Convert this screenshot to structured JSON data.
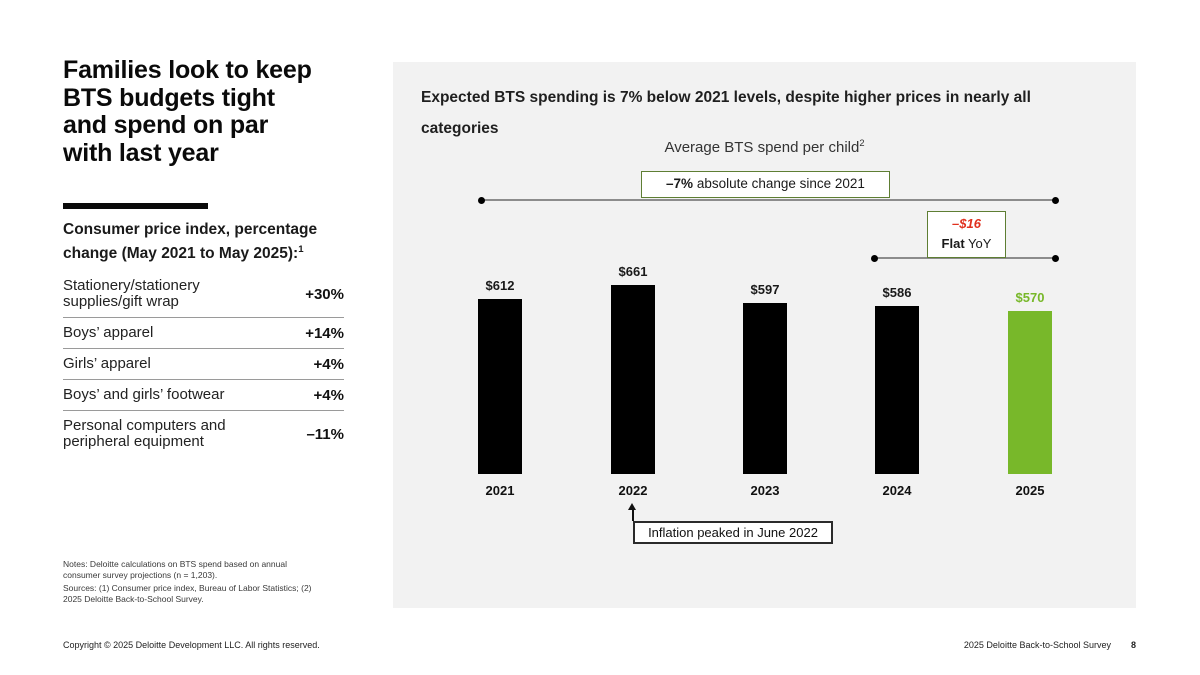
{
  "left": {
    "title_lines": [
      "Families look to keep",
      "BTS budgets tight",
      "and spend on par",
      "with last year"
    ],
    "cpi_heading_line1": "Consumer price index, percentage",
    "cpi_heading_line2": "change (May 2021 to May 2025):",
    "cpi_heading_sup": "1",
    "cpi_rows": [
      {
        "label": "Stationery/stationery supplies/gift wrap",
        "value": "+30%"
      },
      {
        "label": "Boys’ apparel",
        "value": "+14%"
      },
      {
        "label": "Girls’ apparel",
        "value": "+4%"
      },
      {
        "label": "Boys’ and girls’ footwear",
        "value": "+4%"
      },
      {
        "label": "Personal computers and peripheral equipment",
        "value": "–11%"
      }
    ],
    "notes_lines": [
      "Notes: Deloitte calculations on BTS spend based on annual",
      "consumer survey projections (n = 1,203)."
    ],
    "sources_lines": [
      "Sources: (1) Consumer price index, Bureau of Labor Statistics; (2)",
      "2025 Deloitte Back-to-School Survey."
    ]
  },
  "panel": {
    "heading_line1": "Expected BTS spending is 7% below 2021 levels, despite higher prices in nearly all",
    "heading_line2": "categories",
    "subtitle": "Average BTS spend per child",
    "subtitle_sup": "2"
  },
  "chart_data": {
    "type": "bar",
    "title": "Average BTS spend per child",
    "categories": [
      "2021",
      "2022",
      "2023",
      "2024",
      "2025"
    ],
    "values": [
      612,
      661,
      597,
      586,
      570
    ],
    "value_labels": [
      "$612",
      "$661",
      "$597",
      "$586",
      "$570"
    ],
    "bar_colors": [
      "#000000",
      "#000000",
      "#000000",
      "#000000",
      "#78B82A"
    ],
    "value_label_colors": [
      "#1a1a1a",
      "#1a1a1a",
      "#1a1a1a",
      "#1a1a1a",
      "#78B82A"
    ],
    "ylim": [
      0,
      700
    ],
    "grid": false,
    "annotations": {
      "overall_change": {
        "bold": "–7%",
        "rest": " absolute change since 2021",
        "span": [
          "2021",
          "2025"
        ]
      },
      "yoy": {
        "delta": "–$16",
        "flat_bold": "Flat",
        "flat_rest": " YoY",
        "span": [
          "2024",
          "2025"
        ]
      },
      "inflation": {
        "text": "Inflation peaked in June 2022",
        "target": "2022"
      }
    }
  },
  "footer": {
    "copyright": "Copyright © 2025 Deloitte Development LLC. All rights reserved.",
    "right_text": "2025 Deloitte Back-to-School Survey",
    "page_number": "8"
  },
  "colors": {
    "accent_green": "#78B82A",
    "callout_border_green": "#5E7E33",
    "negative_red": "#E0301E",
    "bar_black": "#000000",
    "panel_bg": "#F2F2F2"
  }
}
